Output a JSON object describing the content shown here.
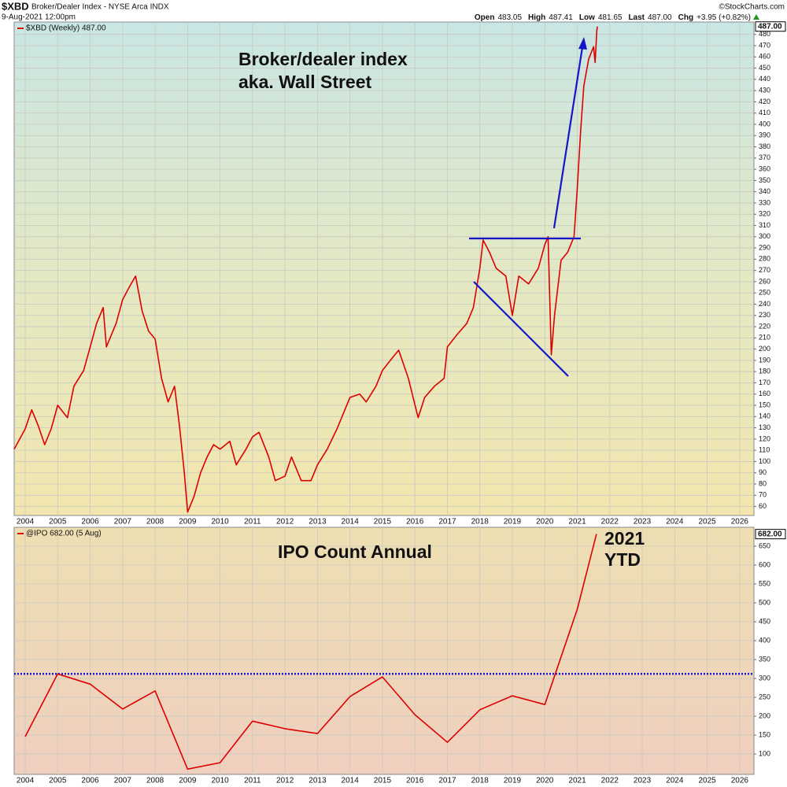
{
  "header": {
    "symbol": "$XBD",
    "name": "Broker/Dealer Index - NYSE Arca INDX",
    "date": "9-Aug-2021 12:00pm",
    "source": "©StockCharts.com",
    "quote": [
      {
        "label": "Open",
        "value": "483.05"
      },
      {
        "label": "High",
        "value": "487.41"
      },
      {
        "label": "Low",
        "value": "481.65"
      },
      {
        "label": "Last",
        "value": "487.00"
      },
      {
        "label": "Chg",
        "value": "+3.95 (+0.82%)"
      }
    ]
  },
  "chart_data": [
    {
      "type": "line",
      "grid": true,
      "xlim": [
        2003.66,
        2026.44
      ],
      "ylim": [
        52,
        491
      ],
      "xticks": [
        2004,
        2005,
        2006,
        2007,
        2008,
        2009,
        2010,
        2011,
        2012,
        2013,
        2014,
        2015,
        2016,
        2017,
        2018,
        2019,
        2020,
        2021,
        2022,
        2023,
        2024,
        2025,
        2026
      ],
      "yticks": [
        60,
        70,
        80,
        90,
        100,
        110,
        120,
        130,
        140,
        150,
        160,
        170,
        180,
        190,
        200,
        210,
        220,
        230,
        240,
        250,
        260,
        270,
        280,
        290,
        300,
        310,
        320,
        330,
        340,
        350,
        360,
        370,
        380,
        390,
        400,
        410,
        420,
        430,
        440,
        450,
        460,
        470,
        480
      ],
      "x": [
        2003.66,
        2004.0,
        2004.2,
        2004.4,
        2004.6,
        2004.8,
        2005.0,
        2005.3,
        2005.5,
        2005.8,
        2006.0,
        2006.2,
        2006.4,
        2006.5,
        2006.8,
        2007.0,
        2007.2,
        2007.4,
        2007.6,
        2007.8,
        2008.0,
        2008.2,
        2008.4,
        2008.6,
        2008.75,
        2008.9,
        2009.0,
        2009.2,
        2009.4,
        2009.6,
        2009.8,
        2010.0,
        2010.3,
        2010.5,
        2010.8,
        2011.0,
        2011.2,
        2011.5,
        2011.7,
        2012.0,
        2012.2,
        2012.5,
        2012.8,
        2013.0,
        2013.3,
        2013.6,
        2014.0,
        2014.3,
        2014.5,
        2014.8,
        2015.0,
        2015.3,
        2015.5,
        2015.8,
        2016.1,
        2016.3,
        2016.6,
        2016.9,
        2017.0,
        2017.3,
        2017.6,
        2017.8,
        2018.0,
        2018.1,
        2018.3,
        2018.5,
        2018.8,
        2019.0,
        2019.2,
        2019.5,
        2019.8,
        2020.0,
        2020.1,
        2020.2,
        2020.3,
        2020.5,
        2020.7,
        2020.9,
        2021.0,
        2021.1,
        2021.2,
        2021.35,
        2021.5,
        2021.55,
        2021.6,
        2021.62
      ],
      "series": [
        {
          "name": "$XBD (Weekly) 487.00",
          "color": "#dd0000",
          "last_label": "487.00",
          "values": [
            111,
            129,
            146,
            132,
            115,
            129,
            150,
            139,
            167,
            181,
            202,
            223,
            237,
            202,
            223,
            244,
            255,
            265,
            234,
            216,
            209,
            174,
            153,
            167,
            132,
            90,
            55,
            69,
            90,
            104,
            115,
            111,
            118,
            97,
            111,
            122,
            126,
            104,
            83,
            87,
            104,
            83,
            83,
            97,
            111,
            129,
            157,
            160,
            153,
            167,
            181,
            192,
            199,
            174,
            139,
            157,
            167,
            174,
            202,
            213,
            223,
            237,
            272,
            297,
            286,
            272,
            265,
            230,
            265,
            258,
            272,
            293,
            300,
            195,
            230,
            279,
            286,
            300,
            343,
            392,
            434,
            458,
            469,
            455,
            483,
            487
          ]
        }
      ],
      "annotations": [
        {
          "text": "Broker/dealer index",
          "color": "#e00000"
        },
        {
          "text": "aka. Wall Street",
          "color": "#e00000"
        }
      ]
    },
    {
      "type": "line",
      "grid": true,
      "xlim": [
        2003.66,
        2026.44
      ],
      "ylim": [
        46,
        700
      ],
      "hline": 312,
      "xticks": [
        2004,
        2005,
        2006,
        2007,
        2008,
        2009,
        2010,
        2011,
        2012,
        2013,
        2014,
        2015,
        2016,
        2017,
        2018,
        2019,
        2020,
        2021,
        2022,
        2023,
        2024,
        2025,
        2026
      ],
      "yticks": [
        100,
        150,
        200,
        250,
        300,
        350,
        400,
        450,
        500,
        550,
        600,
        650
      ],
      "x": [
        2004,
        2005,
        2006,
        2007,
        2008,
        2009,
        2010,
        2011,
        2012,
        2013,
        2014,
        2015,
        2016,
        2017,
        2018,
        2019,
        2020,
        2021,
        2021.59
      ],
      "series": [
        {
          "name": "@IPO 682.00 (5 Aug)",
          "color": "#dd0000",
          "last_label": "682.00",
          "values": [
            146,
            312,
            285,
            219,
            267,
            60,
            77,
            187,
            167,
            154,
            252,
            304,
            204,
            131,
            217,
            254,
            231,
            483,
            682
          ]
        }
      ],
      "annotations": [
        {
          "text": "IPO Count Annual",
          "color": "#e00000"
        },
        {
          "text": "2021",
          "color": "#1010d0"
        },
        {
          "text": "YTD",
          "color": "#1010d0"
        }
      ]
    }
  ]
}
